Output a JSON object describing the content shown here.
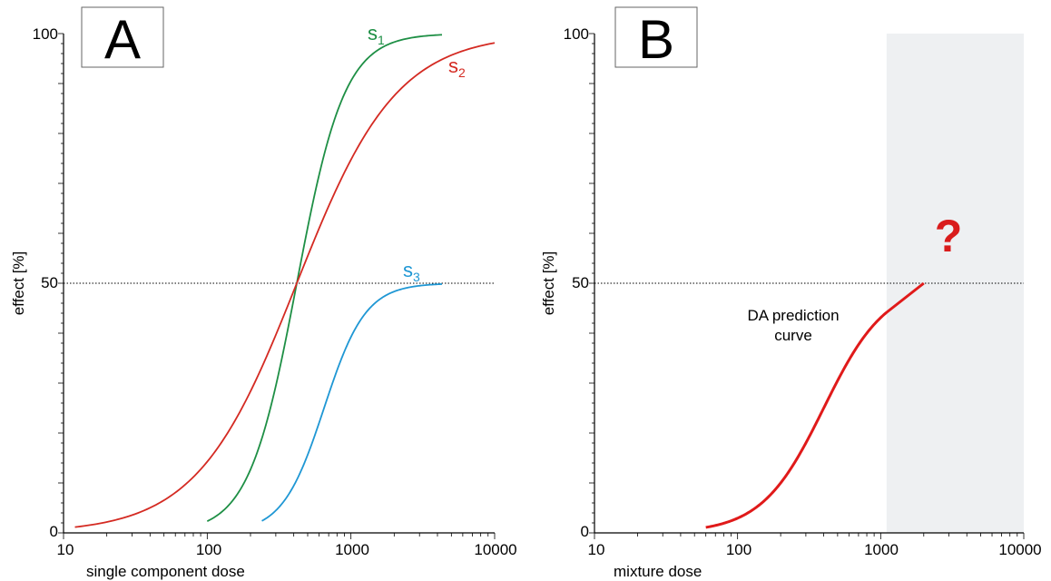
{
  "chart_data": [
    {
      "type": "line",
      "panel": "A",
      "xlabel": "single component dose",
      "ylabel": "effect [%]",
      "xscale": "log",
      "xlim": [
        10,
        10000
      ],
      "ylim": [
        0,
        100
      ],
      "xticks": [
        "10",
        "100",
        "1000",
        "10000"
      ],
      "yticks": [
        "0",
        "50",
        "100"
      ],
      "reference_line": {
        "y": 50,
        "style": "dotted"
      },
      "series": [
        {
          "name": "s",
          "sub": "1",
          "color": "#1e8f45",
          "emax": 100,
          "ec50": 420,
          "hill": 2.6,
          "x_range": [
            100,
            4300
          ]
        },
        {
          "name": "s",
          "sub": "2",
          "color": "#d42a22",
          "emax": 100,
          "ec50": 420,
          "hill": 1.25,
          "x_range": [
            12,
            10000
          ]
        },
        {
          "name": "s",
          "sub": "3",
          "color": "#1f97d4",
          "emax": 50,
          "ec50": 650,
          "hill": 3.0,
          "x_range": [
            240,
            4300
          ]
        }
      ]
    },
    {
      "type": "line",
      "panel": "B",
      "xlabel": "mixture dose",
      "ylabel": "effect [%]",
      "xscale": "log",
      "xlim": [
        10,
        10000
      ],
      "ylim": [
        0,
        100
      ],
      "xticks": [
        "10",
        "100",
        "1000",
        "10000"
      ],
      "yticks": [
        "0",
        "50",
        "100"
      ],
      "reference_line": {
        "y": 50,
        "style": "dotted"
      },
      "shaded_region": {
        "x": [
          1100,
          10000
        ],
        "y": [
          0,
          100
        ],
        "color": "#eef0f2"
      },
      "series": [
        {
          "name": "",
          "color": "#e01a1a",
          "emax": 50,
          "ec50": 400,
          "hill": 2.0,
          "x_range": [
            60,
            1100
          ],
          "plateau_to": 2000
        }
      ],
      "annotations": [
        {
          "text_lines": [
            "DA prediction",
            "curve"
          ]
        },
        {
          "text": "?",
          "color": "#d91c1c"
        }
      ]
    }
  ]
}
